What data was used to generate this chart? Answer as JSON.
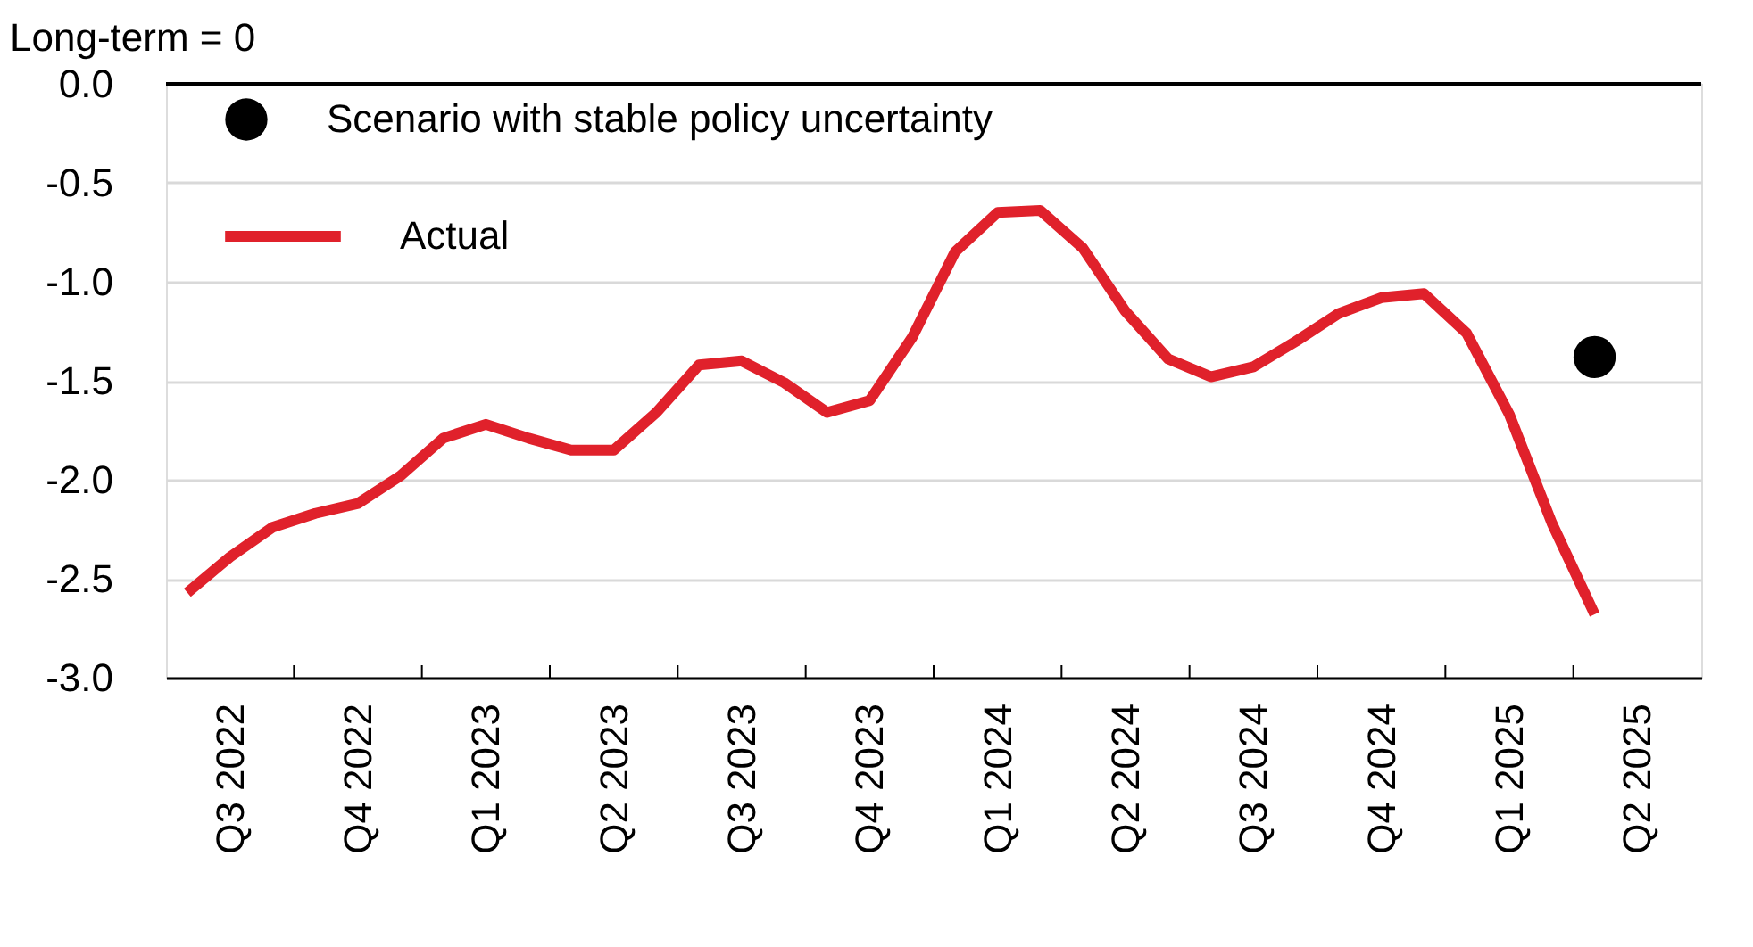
{
  "chart_data": {
    "type": "line",
    "ylabel": "Long-term = 0",
    "categories": [
      null,
      "Q3 2022",
      null,
      null,
      "Q4 2022",
      null,
      null,
      "Q1 2023",
      null,
      null,
      "Q2 2023",
      null,
      null,
      "Q3 2023",
      null,
      null,
      "Q4 2023",
      null,
      null,
      "Q1 2024",
      null,
      null,
      "Q2 2024",
      null,
      null,
      "Q3 2024",
      null,
      null,
      "Q4 2024",
      null,
      null,
      "Q1 2025",
      null,
      null,
      "Q2 2025",
      null
    ],
    "ylim": [
      -3.0,
      0.0
    ],
    "yticks": [
      {
        "value": 0,
        "label": "0.0"
      },
      {
        "value": -0.5,
        "label": "-0.5"
      },
      {
        "value": -1,
        "label": "-1.0"
      },
      {
        "value": -1.5,
        "label": "-1.5"
      },
      {
        "value": -2,
        "label": "-2.0"
      },
      {
        "value": -2.5,
        "label": "-2.5"
      },
      {
        "value": -3,
        "label": "-3.0"
      }
    ],
    "grid": "y",
    "legend": "top left",
    "ref_lines": [
      {
        "axis": "y",
        "value": 0,
        "color": "#000000"
      }
    ],
    "series": [
      {
        "name": "Scenario with stable policy uncertainty",
        "type": "scatter",
        "color": "#000000",
        "values": [
          null,
          null,
          null,
          null,
          null,
          null,
          null,
          null,
          null,
          null,
          null,
          null,
          null,
          null,
          null,
          null,
          null,
          null,
          null,
          null,
          null,
          null,
          null,
          null,
          null,
          null,
          null,
          null,
          null,
          null,
          null,
          null,
          null,
          -1.38,
          null,
          null
        ]
      },
      {
        "name": "Actual",
        "color": "#e0212b",
        "values": [
          -2.57,
          -2.39,
          -2.24,
          -2.17,
          -2.12,
          -1.98,
          -1.79,
          -1.72,
          -1.79,
          -1.85,
          -1.85,
          -1.66,
          -1.42,
          -1.4,
          -1.51,
          -1.66,
          -1.6,
          -1.28,
          -0.85,
          -0.65,
          -0.64,
          -0.83,
          -1.15,
          -1.39,
          -1.48,
          -1.43,
          -1.3,
          -1.16,
          -1.08,
          -1.06,
          -1.26,
          -1.67,
          -2.22,
          -2.68,
          null,
          null
        ]
      }
    ]
  }
}
